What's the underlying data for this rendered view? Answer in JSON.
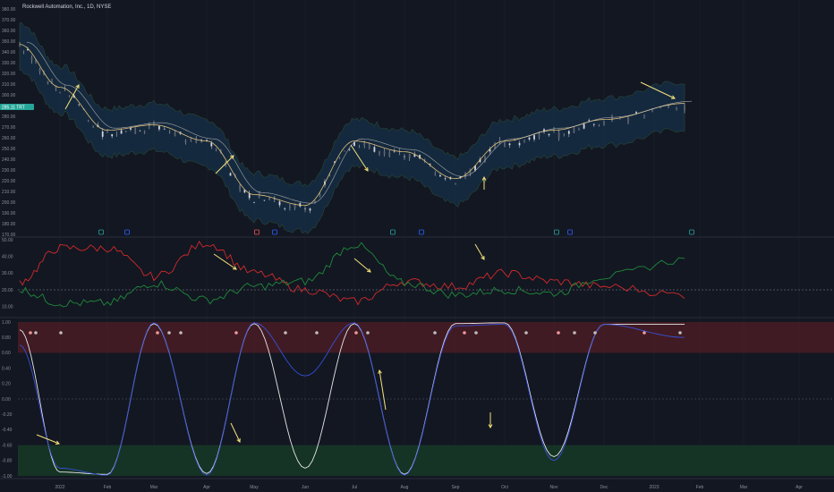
{
  "header": {
    "title": "Rockwell Automation, Inc., 1D, NYSE"
  },
  "colors": {
    "background": "#131722",
    "grid": "#1e222d",
    "price_candle_up": "#b2b5be",
    "price_candle_down": "#b2b5be",
    "bb_upper_fill": "#17324a",
    "bb_lower_fill": "#3a1c24",
    "ma_fast": "#e0c07a",
    "ma_slow": "#c8c8c8",
    "dmi_plus": "#1f8a3a",
    "dmi_minus": "#d02a2a",
    "osc_white": "#e6e6e6",
    "osc_blue": "#3550d8",
    "overbought_zone": "#4a1c24",
    "oversold_zone": "#173a26",
    "annotation_arrow": "#f4e27a",
    "price_label_bg": "#26a69a"
  },
  "price_tag": {
    "label": "285.11 TRT"
  },
  "x_axis": {
    "labels": [
      "2022",
      "Feb",
      "Mar",
      "Apr",
      "May",
      "Jun",
      "Jul",
      "Aug",
      "Sep",
      "Oct",
      "Nov",
      "Dec",
      "2023",
      "Feb",
      "Mar",
      "Apr"
    ]
  },
  "chart_data": [
    {
      "type": "line",
      "panel": "price",
      "title": "Rockwell Automation, Inc., 1D, NYSE",
      "ylim": [
        170,
        380
      ],
      "y_ticks": [
        "380.00",
        "370.00",
        "360.00",
        "350.00",
        "340.00",
        "330.00",
        "320.00",
        "310.00",
        "300.00",
        "290.00",
        "280.00",
        "270.00",
        "260.00",
        "250.00",
        "240.00",
        "230.00",
        "220.00",
        "210.00",
        "200.00",
        "190.00",
        "180.00",
        "170.00"
      ],
      "x": [
        "2022",
        "Feb",
        "Mar",
        "Apr",
        "May",
        "Jun",
        "Jul",
        "Aug",
        "Sep",
        "Oct",
        "Nov",
        "Dec",
        "2023",
        "Feb"
      ],
      "series": [
        {
          "values": [
            345,
            305,
            265,
            270,
            255,
            205,
            195,
            255,
            245,
            220,
            255,
            265,
            275,
            290
          ]
        }
      ]
    },
    {
      "type": "line",
      "panel": "dmi",
      "ylim": [
        5,
        50
      ],
      "y_ticks": [
        "50.00",
        "40.00",
        "30.00",
        "20.00",
        "10.00"
      ],
      "x": [
        "2022",
        "Feb",
        "Mar",
        "Apr",
        "May",
        "Jun",
        "Jul",
        "Aug",
        "Sep",
        "Oct",
        "Nov",
        "Dec",
        "2023",
        "Feb"
      ],
      "series": [
        {
          "values": [
            25,
            45,
            45,
            28,
            48,
            30,
            20,
            13,
            25,
            22,
            30,
            25,
            22,
            17
          ]
        },
        {
          "values": [
            20,
            12,
            12,
            24,
            14,
            22,
            25,
            47,
            24,
            17,
            20,
            18,
            28,
            38
          ]
        }
      ]
    },
    {
      "type": "line",
      "panel": "oscillator",
      "ylim": [
        -1,
        1
      ],
      "y_ticks": [
        "1.00",
        "0.80",
        "0.60",
        "0.40",
        "0.20",
        "0.00",
        "-0.20",
        "-0.40",
        "-0.60",
        "-0.80",
        "-1.00"
      ],
      "x": [
        "2022",
        "Feb",
        "Mar",
        "Apr",
        "May",
        "Jun",
        "Jul",
        "Aug",
        "Sep",
        "Oct",
        "Nov",
        "Dec",
        "2023",
        "Feb"
      ],
      "series": [
        {
          "values": [
            0.9,
            -0.95,
            -0.98,
            0.98,
            -0.97,
            0.98,
            -0.9,
            0.98,
            -0.98,
            0.98,
            0.99,
            -0.75,
            0.97,
            0.97
          ]
        },
        {
          "values": [
            0.7,
            -0.9,
            -0.99,
            0.99,
            -0.99,
            0.99,
            0.3,
            0.99,
            -0.99,
            0.95,
            0.97,
            -0.8,
            0.97,
            0.8
          ]
        }
      ]
    }
  ]
}
